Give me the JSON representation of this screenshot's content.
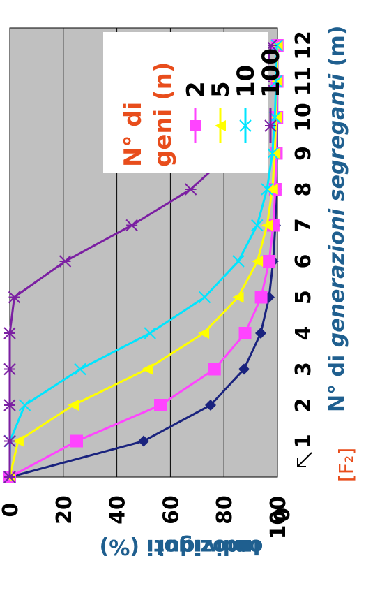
{
  "chart_data": {
    "type": "line",
    "orientation": "rotated 90° counter-clockwise",
    "x": [
      0,
      1,
      2,
      3,
      4,
      5,
      6,
      7,
      8,
      9,
      10,
      11,
      12
    ],
    "x_tick_labels": [
      "0",
      "1",
      "2",
      "3",
      "4",
      "5",
      "6",
      "7",
      "8",
      "9",
      "10",
      "11",
      "12"
    ],
    "xlim": [
      0,
      12.3
    ],
    "ylim": [
      0,
      100
    ],
    "y_ticks": [
      0,
      20,
      40,
      60,
      80,
      100
    ],
    "y_tick_labels": [
      "0",
      "20",
      "40",
      "60",
      "80",
      "100"
    ],
    "xlabel": {
      "part1": "N° di ",
      "part2": "generazioni segreganti",
      "part3": " (m)"
    },
    "ylabel": {
      "line1": "Individui",
      "line2": "omozigoti (%)"
    },
    "annotation": "[F₂]",
    "legend": {
      "title_line1": "N° di",
      "title_line2": "geni (n)",
      "placement": "top-right"
    },
    "grid": true,
    "plot_background": "#c0c0c0",
    "series": [
      {
        "name": "",
        "color": "#1a237e",
        "marker": "diamond",
        "values": [
          0,
          50,
          75,
          87.5,
          93.75,
          96.875,
          98.4,
          99.2,
          99.6,
          99.8,
          99.9,
          99.95,
          99.98
        ]
      },
      {
        "name": "2",
        "color": "#ff44ff",
        "marker": "square",
        "values": [
          0,
          25,
          56.25,
          76.5,
          87.9,
          93.9,
          96.9,
          98.4,
          99.2,
          99.6,
          99.8,
          99.9,
          99.95
        ]
      },
      {
        "name": "5",
        "color": "#ffff00",
        "marker": "triangle",
        "values": [
          0,
          3.1,
          23.7,
          51.3,
          72.4,
          85.3,
          92.5,
          96.1,
          98.1,
          99.0,
          99.5,
          99.8,
          99.9
        ]
      },
      {
        "name": "10",
        "color": "#00e5ff",
        "marker": "x",
        "values": [
          0,
          0.1,
          5.6,
          26.3,
          52.4,
          72.8,
          85.4,
          92.4,
          96.1,
          98.1,
          99.0,
          99.5,
          99.8
        ]
      },
      {
        "name": "100",
        "color": "#7b1fa2",
        "marker": "star",
        "values": [
          0,
          0,
          0,
          0,
          0,
          1.7,
          20.7,
          45.6,
          67.6,
          82.3,
          90.5,
          95.2,
          97.6
        ]
      }
    ]
  }
}
